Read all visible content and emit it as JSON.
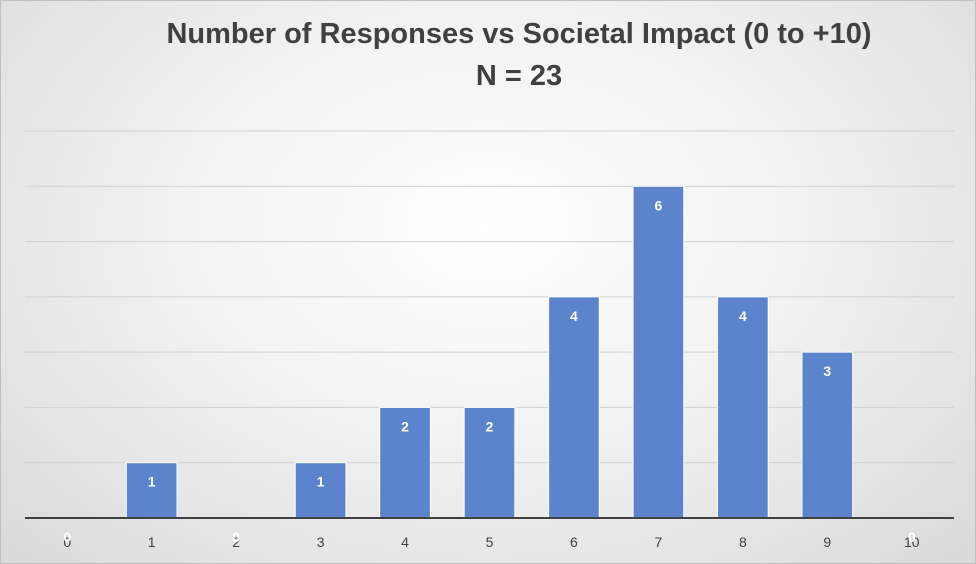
{
  "chart_data": {
    "type": "bar",
    "title": "Number of Responses vs Societal Impact (0 to +10)",
    "subtitle": "N = 23",
    "xlabel": "",
    "ylabel": "",
    "categories": [
      "0",
      "1",
      "2",
      "3",
      "4",
      "5",
      "6",
      "7",
      "8",
      "9",
      "10"
    ],
    "values": [
      0,
      1,
      0,
      1,
      2,
      2,
      4,
      6,
      4,
      3,
      0
    ],
    "ylim": [
      0,
      7
    ],
    "grid": true,
    "legend": "none",
    "data_labels": true,
    "colors": {
      "bar": "#5b84cc",
      "bar_edge": "#ffffff",
      "grid": "#d0d0d0",
      "axis": "#404040",
      "data_label": "#ffffff"
    }
  }
}
